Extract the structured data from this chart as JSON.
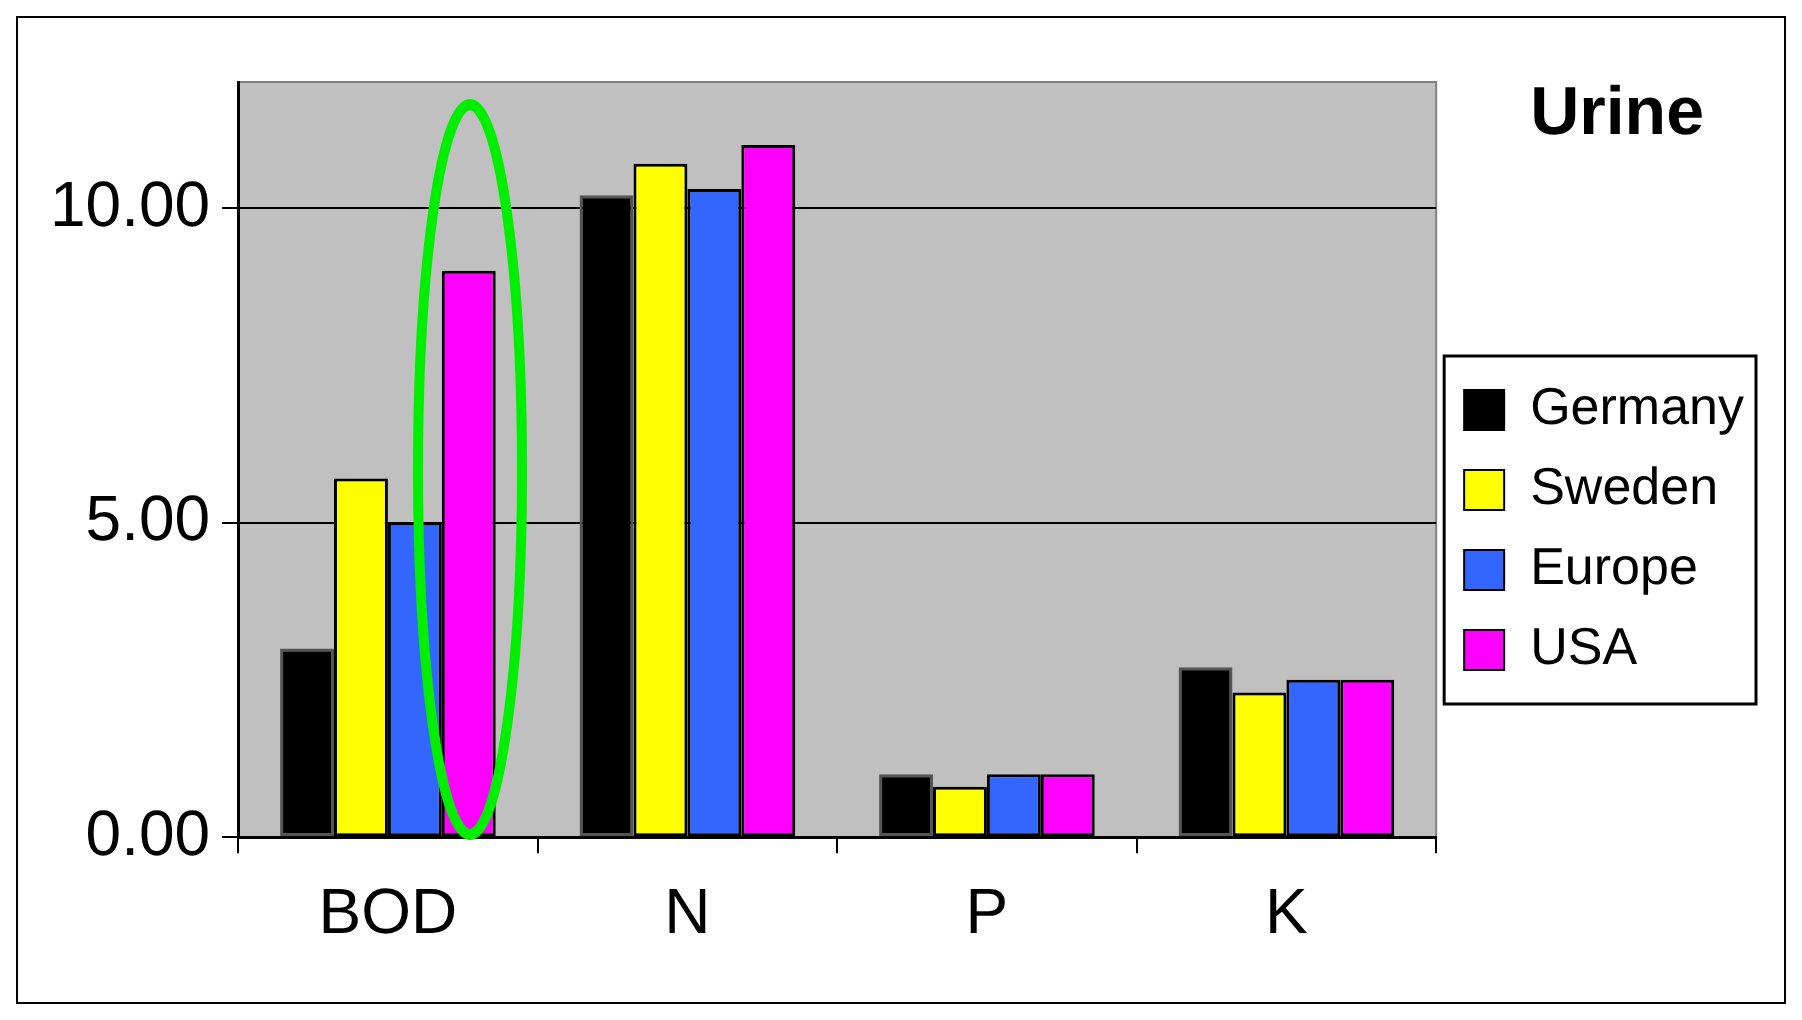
{
  "chart_data": {
    "type": "bar",
    "title": "Urine",
    "categories": [
      "BOD",
      "N",
      "P",
      "K"
    ],
    "series": [
      {
        "name": "Germany",
        "color": "#000000",
        "values": [
          3.0,
          10.2,
          1.0,
          2.7
        ]
      },
      {
        "name": "Sweden",
        "color": "#ffff00",
        "values": [
          5.7,
          10.7,
          0.8,
          2.3
        ]
      },
      {
        "name": "Europe",
        "color": "#3366ff",
        "values": [
          5.0,
          10.3,
          1.0,
          2.5
        ]
      },
      {
        "name": "USA",
        "color": "#ff00ff",
        "values": [
          9.0,
          11.0,
          1.0,
          2.5
        ]
      }
    ],
    "ylim": [
      0,
      12
    ],
    "yticks": [
      {
        "value": 0,
        "label": "0.00"
      },
      {
        "value": 5,
        "label": "5.00"
      },
      {
        "value": 10,
        "label": "10.00"
      }
    ],
    "grid": "y",
    "legend": "right"
  }
}
